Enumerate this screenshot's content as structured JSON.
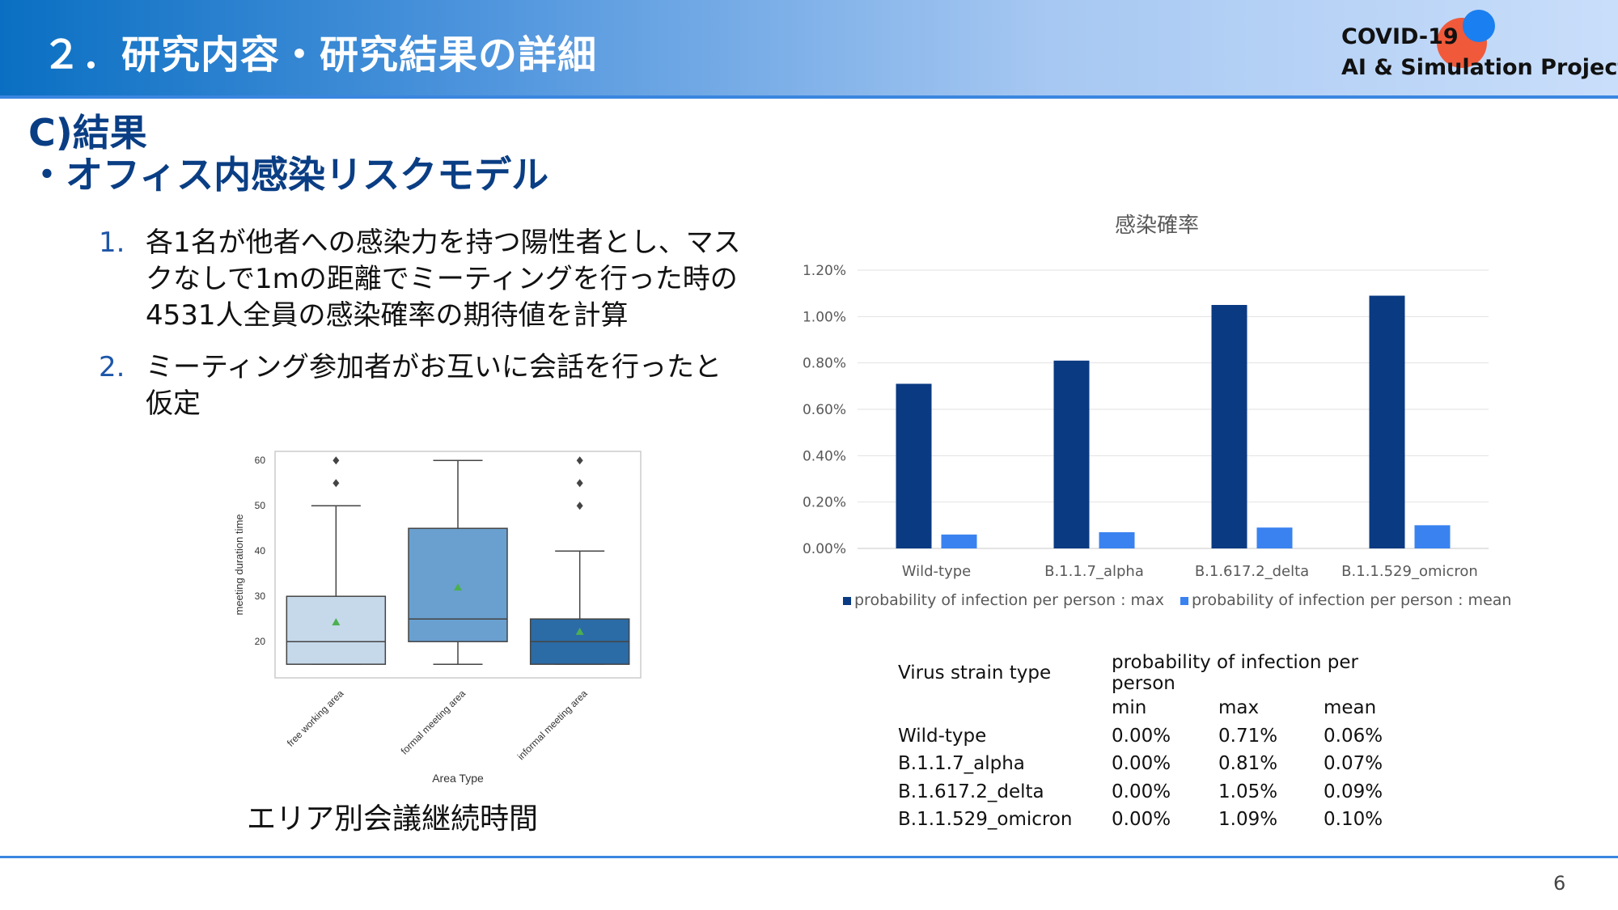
{
  "header": {
    "title": "２．研究内容・研究結果の詳細",
    "logo_line1": "COVID-19",
    "logo_line2": "AI & Simulation Project",
    "gradient_colors": [
      "#0a6fc2",
      "#4f95dd",
      "#c9defa"
    ]
  },
  "section": {
    "title": "C)結果",
    "subtitle": "・オフィス内感染リスクモデル"
  },
  "list": [
    {
      "num": "1.",
      "text": "各1名が他者への感染力を持つ陽性者とし、マスクなしで1mの距離でミーティングを行った時の4531人全員の感染確率の期待値を計算"
    },
    {
      "num": "2.",
      "text": "ミーティング参加者がお互いに会話を行ったと仮定"
    }
  ],
  "boxplot_caption": "エリア別会議継続時間",
  "chart_data": [
    {
      "type": "box",
      "title": "",
      "xlabel": "Area Type",
      "ylabel": "meeting duration time",
      "ylim": [
        12,
        62
      ],
      "yticks": [
        20,
        30,
        40,
        50,
        60
      ],
      "categories": [
        "free working area",
        "formal meeting area",
        "informal meeting area"
      ],
      "colors": [
        "#c6d9ea",
        "#6aa0cf",
        "#2b6ba6"
      ],
      "boxes": [
        {
          "whisker_low": 15,
          "q1": 15,
          "median": 20,
          "q3": 30,
          "whisker_high": 50,
          "mean": 24.3,
          "outliers": [
            55,
            60
          ]
        },
        {
          "whisker_low": 15,
          "q1": 20,
          "median": 25,
          "q3": 45,
          "whisker_high": 60,
          "mean": 32,
          "outliers": []
        },
        {
          "whisker_low": 15,
          "q1": 15,
          "median": 20,
          "q3": 25,
          "whisker_high": 40,
          "mean": 22.2,
          "outliers": [
            50,
            55,
            60
          ]
        }
      ],
      "grid": false
    },
    {
      "type": "bar",
      "title": "感染確率",
      "categories": [
        "Wild-type",
        "B.1.1.7_alpha",
        "B.1.617.2_delta",
        "B.1.1.529_omicron"
      ],
      "series": [
        {
          "name": "probability of infection per person : max",
          "color": "#0a3a82",
          "values": [
            0.71,
            0.81,
            1.05,
            1.09
          ]
        },
        {
          "name": "probability of infection per person : mean",
          "color": "#3a82f0",
          "values": [
            0.06,
            0.07,
            0.09,
            0.1
          ]
        }
      ],
      "ylim": [
        0,
        1.2
      ],
      "yticks": [
        "0.00%",
        "0.20%",
        "0.40%",
        "0.60%",
        "0.80%",
        "1.00%",
        "1.20%"
      ],
      "ylabel": "",
      "xlabel": "",
      "grid": true,
      "legend_position": "bottom"
    }
  ],
  "table": {
    "header_col1": "Virus strain type",
    "header_group": "probability of infection per person",
    "subheaders": [
      "min",
      "max",
      "mean"
    ],
    "rows": [
      {
        "strain": "Wild-type",
        "min": "0.00%",
        "max": "0.71%",
        "mean": "0.06%"
      },
      {
        "strain": "B.1.1.7_alpha",
        "min": "0.00%",
        "max": "0.81%",
        "mean": "0.07%"
      },
      {
        "strain": "B.1.617.2_delta",
        "min": "0.00%",
        "max": "1.05%",
        "mean": "0.09%"
      },
      {
        "strain": "B.1.1.529_omicron",
        "min": "0.00%",
        "max": "1.09%",
        "mean": "0.10%"
      }
    ]
  },
  "page_number": "6"
}
